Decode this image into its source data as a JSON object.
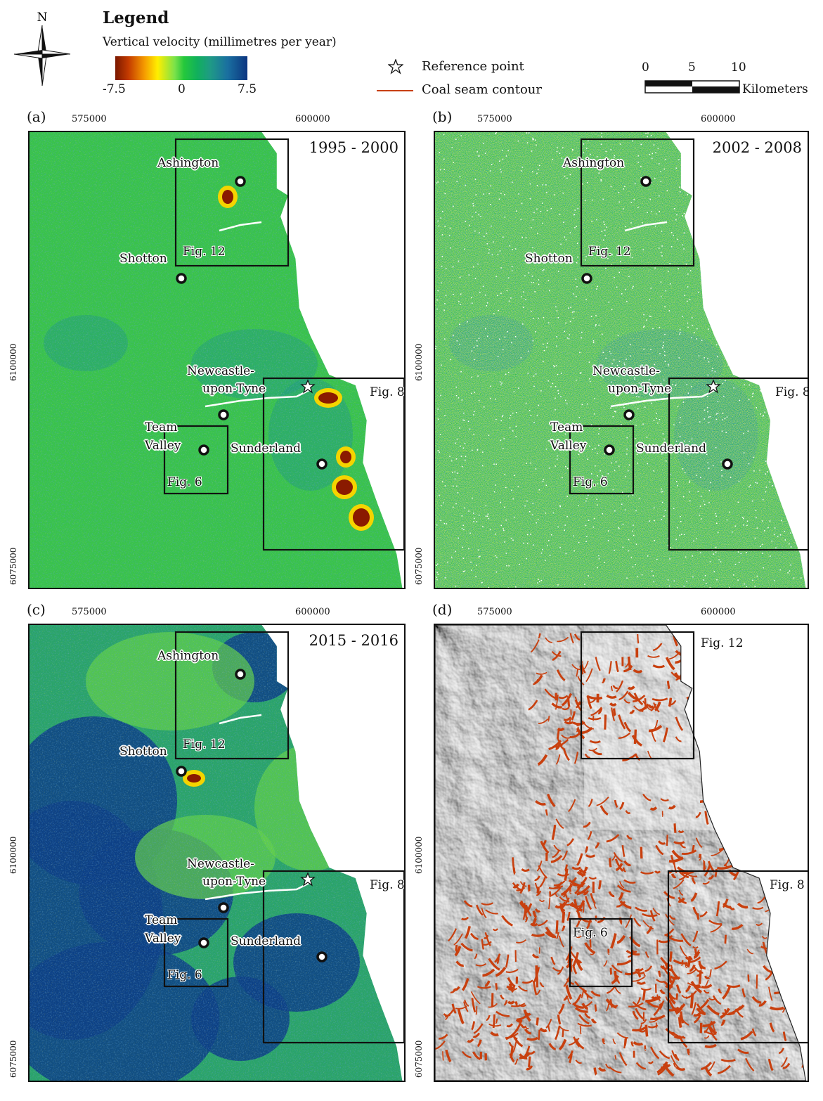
{
  "legend": {
    "north": "N",
    "title": "Legend",
    "subtitle": "Vertical velocity (millimetres per year)",
    "colorbar_ticks": [
      "-7.5",
      "0",
      "7.5"
    ],
    "colorbar_colors": [
      "#7a1800",
      "#f59a00",
      "#ffee00",
      "#25c83c",
      "#1f9a86",
      "#0b3580"
    ],
    "reference_point": "Reference point",
    "coal_seam": "Coal seam contour",
    "coal_color": "#c8400f",
    "scale_ticks": [
      "0",
      "5",
      "10"
    ],
    "scale_unit": "Kilometers"
  },
  "panels": [
    {
      "letter": "(a)",
      "period": "1995 - 2000",
      "style": "a",
      "x_ticks": [
        "575000",
        "600000"
      ],
      "y_ticks": [
        "6100000",
        "6075000"
      ],
      "places": [
        "Ashington",
        "Shotton",
        "Newcastle-",
        "upon-Tyne",
        "Team",
        "Valley",
        "Sunderland"
      ],
      "figs": [
        "Fig. 12",
        "Fig. 8",
        "Fig. 6"
      ]
    },
    {
      "letter": "(b)",
      "period": "2002 - 2008",
      "style": "b",
      "x_ticks": [
        "575000",
        "600000"
      ],
      "y_ticks": [
        "6100000",
        "6075000"
      ],
      "places": [
        "Ashington",
        "Shotton",
        "Newcastle-",
        "upon-Tyne",
        "Team",
        "Valley",
        "Sunderland"
      ],
      "figs": [
        "Fig. 12",
        "Fig. 8",
        "Fig. 6"
      ]
    },
    {
      "letter": "(c)",
      "period": "2015 - 2016",
      "style": "c",
      "x_ticks": [
        "575000",
        "600000"
      ],
      "y_ticks": [
        "6100000",
        "6075000"
      ],
      "places": [
        "Ashington",
        "Shotton",
        "Newcastle-",
        "upon-Tyne",
        "Team",
        "Valley",
        "Sunderland"
      ],
      "figs": [
        "Fig. 12",
        "Fig. 8",
        "Fig. 6"
      ]
    },
    {
      "letter": "(d)",
      "period": "",
      "style": "d",
      "x_ticks": [
        "575000",
        "600000"
      ],
      "y_ticks": [
        "6100000",
        "6075000"
      ],
      "places": [],
      "figs": [
        "Fig. 12",
        "Fig. 8",
        "Fig. 6"
      ]
    }
  ]
}
